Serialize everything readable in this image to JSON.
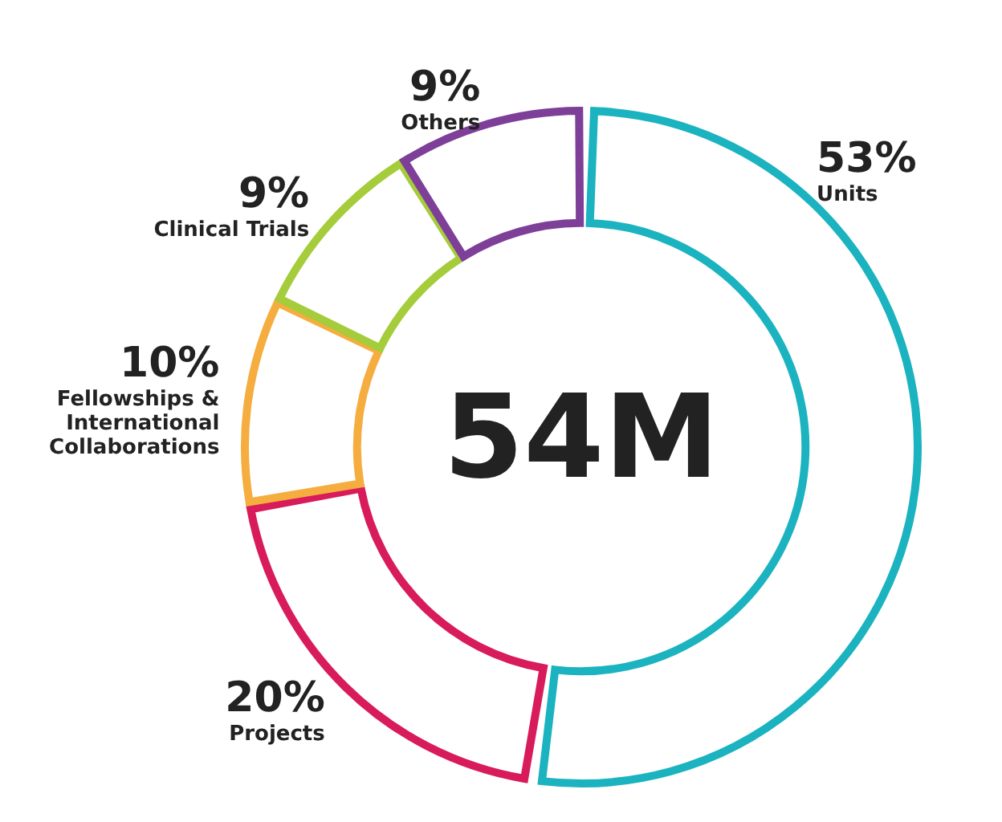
{
  "chart_data": {
    "type": "donut",
    "categories": [
      "Units",
      "Projects",
      "Fellowships & International Collaborations",
      "Clinical Trials",
      "Others"
    ],
    "values": [
      53,
      20,
      10,
      9,
      9
    ],
    "value_labels": [
      "53%",
      "20%",
      "10%",
      "9%",
      "9%"
    ],
    "colors": [
      "#1ab3bf",
      "#d81b5a",
      "#f5ad3f",
      "#a5cc3a",
      "#7e3f98"
    ],
    "annotations": [
      "54M"
    ],
    "legend": false
  }
}
